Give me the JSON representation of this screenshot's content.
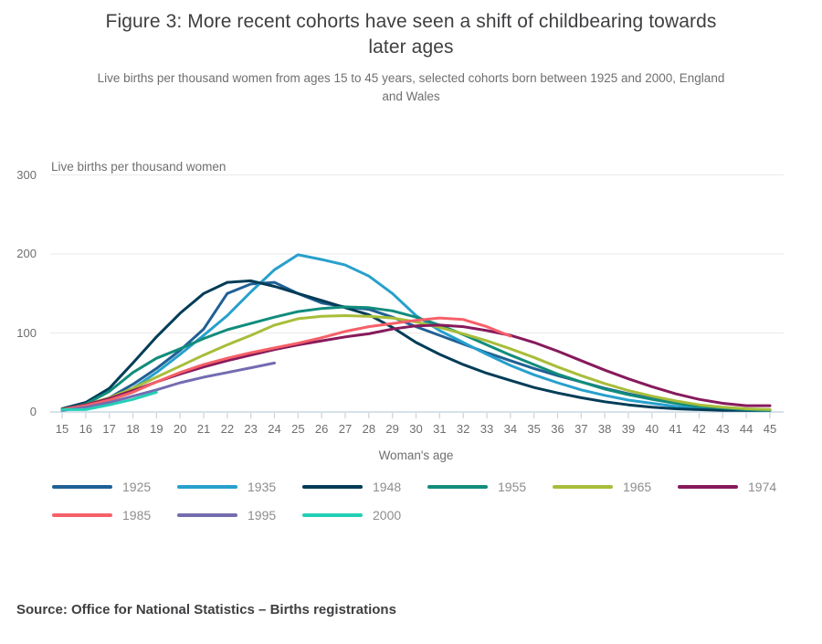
{
  "figure": {
    "title": "Figure 3: More recent cohorts have seen a shift of childbearing towards later ages",
    "title_lines": [
      "Figure 3: More recent cohorts have seen a shift of childbearing towards",
      "later ages"
    ],
    "subtitle": "Live births per thousand women from ages 15 to 45 years, selected cohorts born between 1925 and 2000, England and Wales",
    "subtitle_lines": [
      "Live births per thousand women from ages 15 to 45 years, selected cohorts born between 1925 and 2000, England",
      "and Wales"
    ]
  },
  "chart_data": {
    "type": "line",
    "unit_label": "Live births per thousand women",
    "xlabel": "Woman's age",
    "ylabel": "Live births per thousand women",
    "xlim": [
      15,
      45
    ],
    "ylim": [
      0,
      300
    ],
    "x_ticks": [
      15,
      16,
      17,
      18,
      19,
      20,
      21,
      22,
      23,
      24,
      25,
      26,
      27,
      28,
      29,
      30,
      31,
      32,
      33,
      34,
      35,
      36,
      37,
      38,
      39,
      40,
      41,
      42,
      43,
      44,
      45
    ],
    "y_ticks": [
      0,
      100,
      200,
      300
    ],
    "grid": "horizontal",
    "legend_position": "bottom",
    "axis_color": "#c9d7e2",
    "grid_color": "#e9e9e9",
    "series": [
      {
        "name": "1925",
        "color": "#206095",
        "start_age": 15,
        "values": [
          3,
          8,
          18,
          35,
          55,
          78,
          105,
          150,
          162,
          164,
          150,
          138,
          133,
          130,
          120,
          108,
          97,
          86,
          75,
          65,
          55,
          46,
          38,
          30,
          23,
          17,
          12,
          8,
          5,
          3,
          3
        ]
      },
      {
        "name": "1935",
        "color": "#27a0cc",
        "start_age": 15,
        "values": [
          2,
          6,
          15,
          30,
          50,
          73,
          97,
          122,
          152,
          180,
          199,
          193,
          186,
          172,
          150,
          122,
          103,
          88,
          73,
          59,
          47,
          37,
          28,
          21,
          15,
          11,
          7,
          5,
          3,
          2,
          2
        ]
      },
      {
        "name": "1948",
        "color": "#003c57",
        "start_age": 15,
        "values": [
          4,
          12,
          30,
          62,
          95,
          125,
          150,
          164,
          166,
          159,
          150,
          141,
          132,
          123,
          107,
          88,
          73,
          60,
          49,
          40,
          31,
          24,
          18,
          13,
          9,
          6,
          4,
          3,
          2,
          2,
          2
        ]
      },
      {
        "name": "1955",
        "color": "#118c7b",
        "start_age": 15,
        "values": [
          3,
          10,
          26,
          50,
          68,
          80,
          93,
          104,
          112,
          120,
          127,
          131,
          133,
          132,
          128,
          120,
          110,
          98,
          85,
          72,
          60,
          48,
          38,
          29,
          22,
          16,
          11,
          7,
          5,
          3,
          2
        ]
      },
      {
        "name": "1965",
        "color": "#a8bd3a",
        "start_age": 15,
        "values": [
          3,
          9,
          18,
          30,
          44,
          58,
          72,
          85,
          97,
          110,
          118,
          121,
          122,
          121,
          119,
          114,
          107,
          99,
          90,
          80,
          69,
          57,
          46,
          36,
          27,
          20,
          14,
          9,
          6,
          4,
          3
        ]
      },
      {
        "name": "1974",
        "color": "#871a5b",
        "start_age": 15,
        "values": [
          3,
          9,
          17,
          27,
          38,
          48,
          57,
          65,
          72,
          79,
          85,
          90,
          95,
          99,
          105,
          109,
          110,
          108,
          103,
          97,
          88,
          77,
          65,
          53,
          42,
          32,
          23,
          16,
          11,
          8,
          8
        ]
      },
      {
        "name": "1985",
        "color": "#f66068",
        "start_age": 15,
        "values": [
          3,
          8,
          15,
          25,
          38,
          50,
          60,
          68,
          75,
          81,
          87,
          94,
          102,
          108,
          112,
          116,
          119,
          117,
          108,
          96
        ]
      },
      {
        "name": "1995",
        "color": "#746cb1",
        "start_age": 15,
        "values": [
          2,
          6,
          12,
          20,
          28,
          37,
          44,
          50,
          56,
          62
        ]
      },
      {
        "name": "2000",
        "color": "#22d0b6",
        "start_age": 15,
        "values": [
          3,
          3,
          9,
          16,
          25
        ]
      }
    ]
  },
  "source": {
    "text": "Source: Office for National Statistics – Births registrations"
  }
}
